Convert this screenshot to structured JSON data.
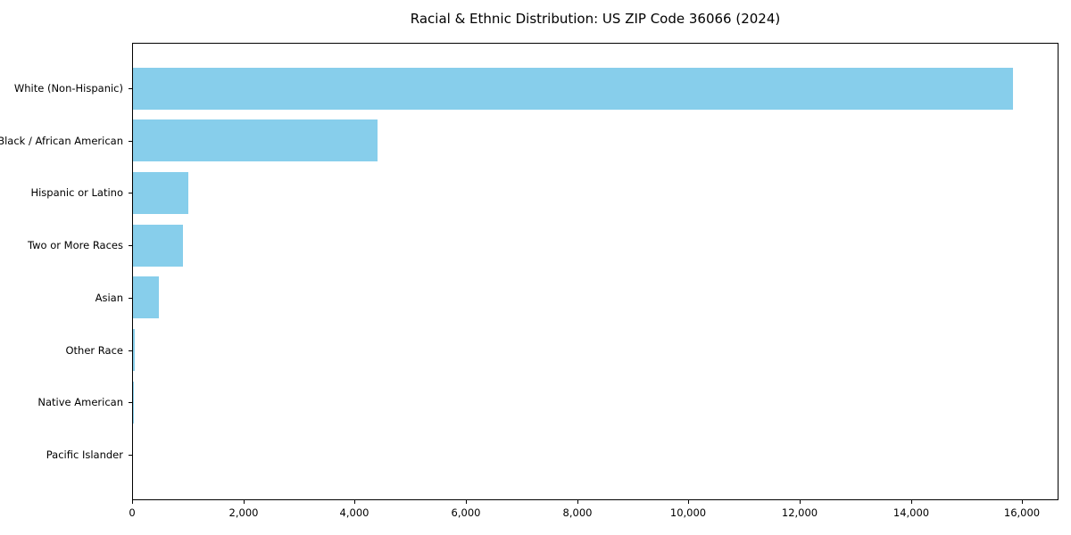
{
  "chart_data": {
    "type": "bar",
    "orientation": "horizontal",
    "title": "Racial & Ethnic Distribution: US ZIP Code 36066 (2024)",
    "categories": [
      "White (Non-Hispanic)",
      "Black / African American",
      "Hispanic or Latino",
      "Two or More Races",
      "Asian",
      "Other Race",
      "Native American",
      "Pacific Islander"
    ],
    "values": [
      15850,
      4400,
      1000,
      900,
      460,
      25,
      15,
      8
    ],
    "xlabel": "",
    "ylabel": "",
    "xlim": [
      0,
      16650
    ],
    "xticks": [
      0,
      2000,
      4000,
      6000,
      8000,
      10000,
      12000,
      14000,
      16000
    ],
    "xtick_labels": [
      "0",
      "2,000",
      "4,000",
      "6,000",
      "8,000",
      "10,000",
      "12,000",
      "14,000",
      "16,000"
    ],
    "bar_color": "#87CEEB",
    "spine_color": "#000000",
    "grid": false,
    "legend": false
  }
}
